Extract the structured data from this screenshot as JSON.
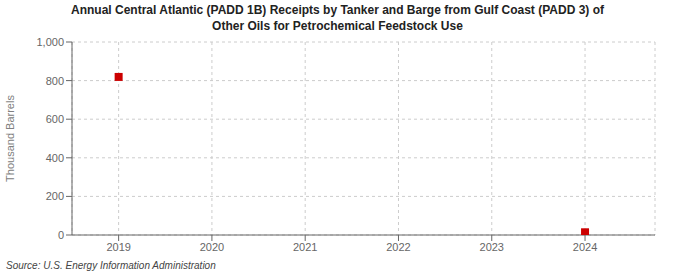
{
  "chart_data": {
    "type": "scatter",
    "title": "Annual Central Atlantic (PADD 1B) Receipts by Tanker and Barge from Gulf Coast (PADD 3) of\nOther Oils for Petrochemical Feedstock Use",
    "ylabel": "Thousand Barrels",
    "source": "Source: U.S. Energy Information Administration",
    "x": [
      2019,
      2024
    ],
    "values": [
      819,
      14
    ],
    "color": "#cc0000",
    "marker": "square",
    "xlim": [
      2018.5,
      2024.75
    ],
    "ylim": [
      0,
      1000
    ],
    "xticks": [
      2019,
      2020,
      2021,
      2022,
      2023,
      2024
    ],
    "yticks": [
      0,
      200,
      400,
      600,
      800,
      {
        "value": 1000,
        "label": "1,000"
      }
    ],
    "grid": true
  }
}
